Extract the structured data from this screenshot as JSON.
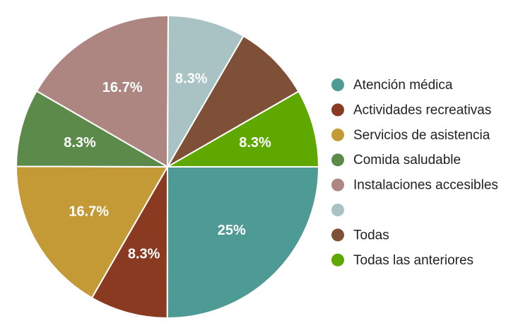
{
  "chart_data": {
    "type": "pie",
    "categories": [
      "Atención médica",
      "Actividades recreativas",
      "Servicios de asistencia",
      "Comida saludable",
      "Instalaciones accesibles",
      null,
      "Todas",
      "Todas las anteriores"
    ],
    "values": [
      25,
      8.3,
      16.7,
      8.3,
      16.7,
      8.3,
      8.3,
      8.3
    ],
    "value_labels": [
      "25%",
      "8.3%",
      "16.7%",
      "8.3%",
      "16.7%",
      "8.3%",
      null,
      "8.3%"
    ],
    "colors": [
      "#4e9a94",
      "#8b3a22",
      "#c49a36",
      "#5b8a4a",
      "#ad8581",
      "#a9c2c4",
      "#7d5037",
      "#5ea800"
    ],
    "start_angle": 90,
    "legend": "right"
  }
}
